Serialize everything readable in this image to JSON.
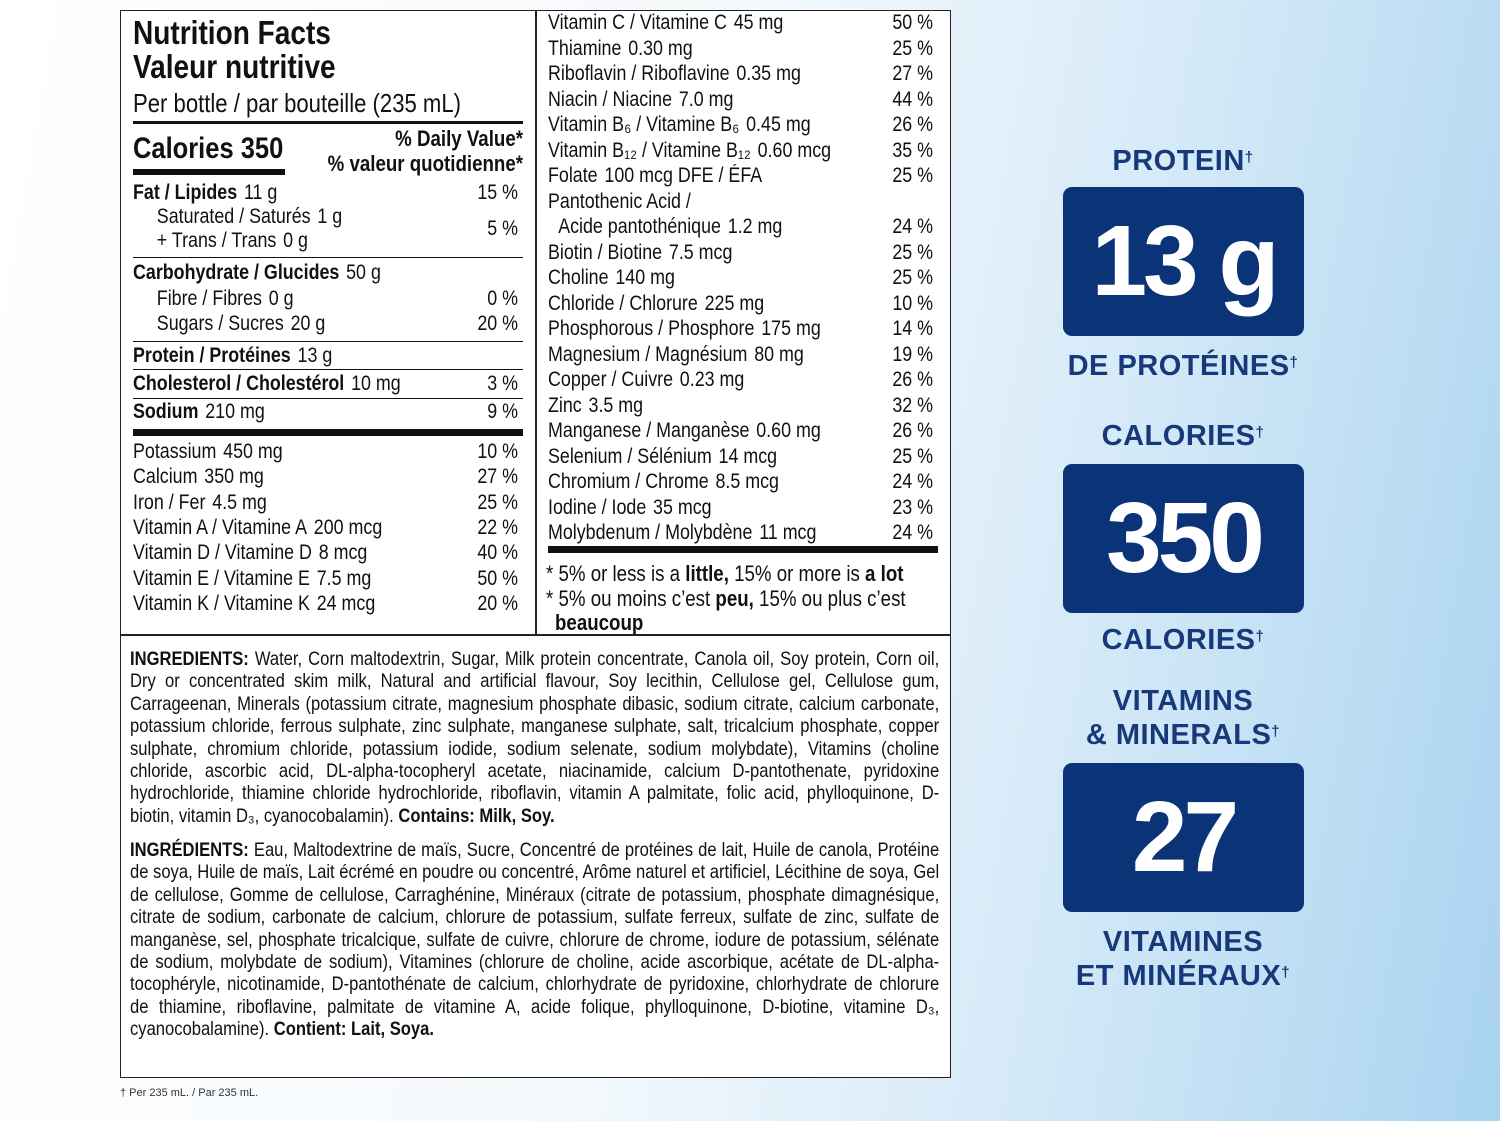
{
  "label": {
    "title_en": "Nutrition Facts",
    "title_fr": "Valeur nutritive",
    "serving": "Per bottle / par bouteille (235 mL)",
    "calories": "Calories 350",
    "dv_en": "% Daily Value*",
    "dv_fr": "% valeur quotidienne*",
    "left_rows": [
      {
        "name": "Fat / Lipides",
        "amount": "11 g",
        "dv": "15 %",
        "bold": true,
        "indent": false
      },
      {
        "name": "Saturated / Saturés",
        "amount": "1 g",
        "dv": "",
        "bold": false,
        "indent": true
      },
      {
        "name": "+ Trans / Trans",
        "amount": "0 g",
        "dv": "",
        "bold": false,
        "indent": true
      },
      {
        "name": "Carbohydrate / Glucides",
        "amount": "50 g",
        "dv": "",
        "bold": true,
        "indent": false
      },
      {
        "name": "Fibre / Fibres",
        "amount": "0 g",
        "dv": "0 %",
        "bold": false,
        "indent": true
      },
      {
        "name": "Sugars / Sucres",
        "amount": "20 g",
        "dv": "20 %",
        "bold": false,
        "indent": true
      },
      {
        "name": "Protein / Protéines",
        "amount": "13 g",
        "dv": "",
        "bold": true,
        "indent": false
      },
      {
        "name": "Cholesterol / Cholestérol",
        "amount": "10 mg",
        "dv": "3 %",
        "bold": true,
        "indent": false
      },
      {
        "name": "Sodium",
        "amount": "210 mg",
        "dv": "9 %",
        "bold": true,
        "indent": false
      },
      {
        "name": "Potassium",
        "amount": "450 mg",
        "dv": "10 %",
        "bold": false,
        "indent": false
      },
      {
        "name": "Calcium",
        "amount": "350 mg",
        "dv": "27 %",
        "bold": false,
        "indent": false
      },
      {
        "name": "Iron / Fer",
        "amount": "4.5 mg",
        "dv": "25 %",
        "bold": false,
        "indent": false
      },
      {
        "name": "Vitamin A / Vitamine A",
        "amount": "200 mcg",
        "dv": "22 %",
        "bold": false,
        "indent": false
      },
      {
        "name": "Vitamin D / Vitamine D",
        "amount": "8 mcg",
        "dv": "40 %",
        "bold": false,
        "indent": false
      },
      {
        "name": "Vitamin E / Vitamine E",
        "amount": "7.5 mg",
        "dv": "50 %",
        "bold": false,
        "indent": false
      },
      {
        "name": "Vitamin K / Vitamine K",
        "amount": "24 mcg",
        "dv": "20 %",
        "bold": false,
        "indent": false
      }
    ],
    "sat_trans_dv": "5 %",
    "right_rows": [
      {
        "name": "Vitamin C / Vitamine C",
        "amount": "45 mg",
        "dv": "50 %"
      },
      {
        "name": "Thiamine",
        "amount": "0.30 mg",
        "dv": "25 %"
      },
      {
        "name": "Riboflavin / Riboflavine",
        "amount": "0.35 mg",
        "dv": "27 %"
      },
      {
        "name": "Niacin / Niacine",
        "amount": "7.0 mg",
        "dv": "44 %"
      },
      {
        "name": "Vitamin B₆ / Vitamine B₆",
        "amount": "0.45 mg",
        "dv": "26 %"
      },
      {
        "name": "Vitamin B₁₂ / Vitamine B₁₂",
        "amount": "0.60 mcg",
        "dv": "35 %"
      },
      {
        "name": "Folate",
        "amount": "100 mcg DFE / ÉFA",
        "dv": "25 %"
      },
      {
        "name": "Pantothenic Acid /",
        "amount": "",
        "dv": ""
      },
      {
        "name": " Acide pantothénique",
        "amount": "1.2 mg",
        "dv": "24 %"
      },
      {
        "name": "Biotin / Biotine",
        "amount": "7.5 mcg",
        "dv": "25 %"
      },
      {
        "name": "Choline",
        "amount": "140 mg",
        "dv": "25 %"
      },
      {
        "name": "Chloride / Chlorure",
        "amount": "225 mg",
        "dv": "10 %"
      },
      {
        "name": "Phosphorous / Phosphore",
        "amount": "175 mg",
        "dv": "14 %"
      },
      {
        "name": "Magnesium / Magnésium",
        "amount": "80 mg",
        "dv": "19 %"
      },
      {
        "name": "Copper / Cuivre",
        "amount": "0.23 mg",
        "dv": "26 %"
      },
      {
        "name": "Zinc",
        "amount": "3.5 mg",
        "dv": "32 %"
      },
      {
        "name": "Manganese / Manganèse",
        "amount": "0.60 mg",
        "dv": "26 %"
      },
      {
        "name": "Selenium / Sélénium",
        "amount": "14 mcg",
        "dv": "25 %"
      },
      {
        "name": "Chromium / Chrome",
        "amount": "8.5 mcg",
        "dv": "24 %"
      },
      {
        "name": "Iodine / Iode",
        "amount": "35 mcg",
        "dv": "23 %"
      },
      {
        "name": "Molybdenum / Molybdène",
        "amount": "11 mcg",
        "dv": "24 %"
      }
    ],
    "footnote_en": {
      "a": "* 5% or less is a ",
      "b": "little,",
      "c": " 15% or more is ",
      "d": "a lot"
    },
    "footnote_fr": {
      "a": "* 5% ou moins c’est ",
      "b": "peu,",
      "c": " 15% ou plus c’est",
      "d": "beaucoup"
    },
    "ingredients_en": {
      "head": "INGREDIENTS:",
      "body": " Water, Corn maltodextrin, Sugar, Milk protein concentrate, Canola oil, Soy protein, Corn oil, Dry or concentrated skim milk, Natural and artificial flavour, Soy lecithin, Cellulose gel, Cellulose gum, Carrageenan, Minerals (potassium citrate, magnesium phosphate dibasic, sodium citrate, calcium carbonate, potassium chloride, ferrous sulphate, zinc sulphate, manganese sulphate, salt, tricalcium phosphate, copper sulphate, chromium chloride, potassium iodide, sodium selenate, sodium molybdate), Vitamins (choline chloride, ascorbic acid, DL-alpha-tocopheryl acetate, niacinamide, calcium D-pantothenate, pyridoxine hydrochloride, thiamine chloride hydrochloride, riboflavin, vitamin A palmitate, folic acid, phylloquinone, D-biotin, vitamin D₃, cyanocobalamin). ",
      "contains": "Contains: Milk, Soy."
    },
    "ingredients_fr": {
      "head": "INGRÉDIENTS:",
      "body": " Eau, Maltodextrine de maïs, Sucre, Concentré de protéines de lait, Huile de canola, Protéine de soya, Huile de maïs, Lait écrémé en poudre ou concentré, Arôme naturel et artificiel, Lécithine de soya, Gel de cellulose, Gomme de cellulose, Carraghénine, Minéraux (citrate de potassium, phosphate dimagnésique, citrate de sodium, carbonate de calcium, chlorure de potassium, sulfate ferreux, sulfate de zinc, sulfate de manganèse, sel, phosphate tricalcique, sulfate de cuivre, chlorure de chrome, iodure de potassium, sélénate de sodium, molybdate de sodium), Vitamines (chlorure de choline, acide ascorbique, acétate de DL-alpha-tocophéryle, nicotinamide, D-pantothénate de calcium, chlorhydrate de pyridoxine, chlorhydrate de chlorure de thiamine, riboflavine, palmitate de vitamine A, acide folique, phylloquinone, D-biotine, vitamine D₃, cyanocobalamine). ",
      "contains": "Contient: Lait, Soya."
    }
  },
  "highlights": {
    "protein_label": "PROTEIN",
    "protein_value": "13 g",
    "protein_label_fr": "DE PROTÉINES",
    "calories_label": "CALORIES",
    "calories_value": "350",
    "calories_label_fr": "CALORIES",
    "vitamins_label_1": "VITAMINS",
    "vitamins_label_2": "& MINERALS",
    "vitamins_value": "27",
    "vitamins_label_fr_1": "VITAMINES",
    "vitamins_label_fr_2": "ET MINÉRAUX",
    "dagger": "†",
    "colors": {
      "box": "#0b3478",
      "text": "#17397a"
    }
  },
  "footer": "† Per 235 mL. / Par 235 mL."
}
